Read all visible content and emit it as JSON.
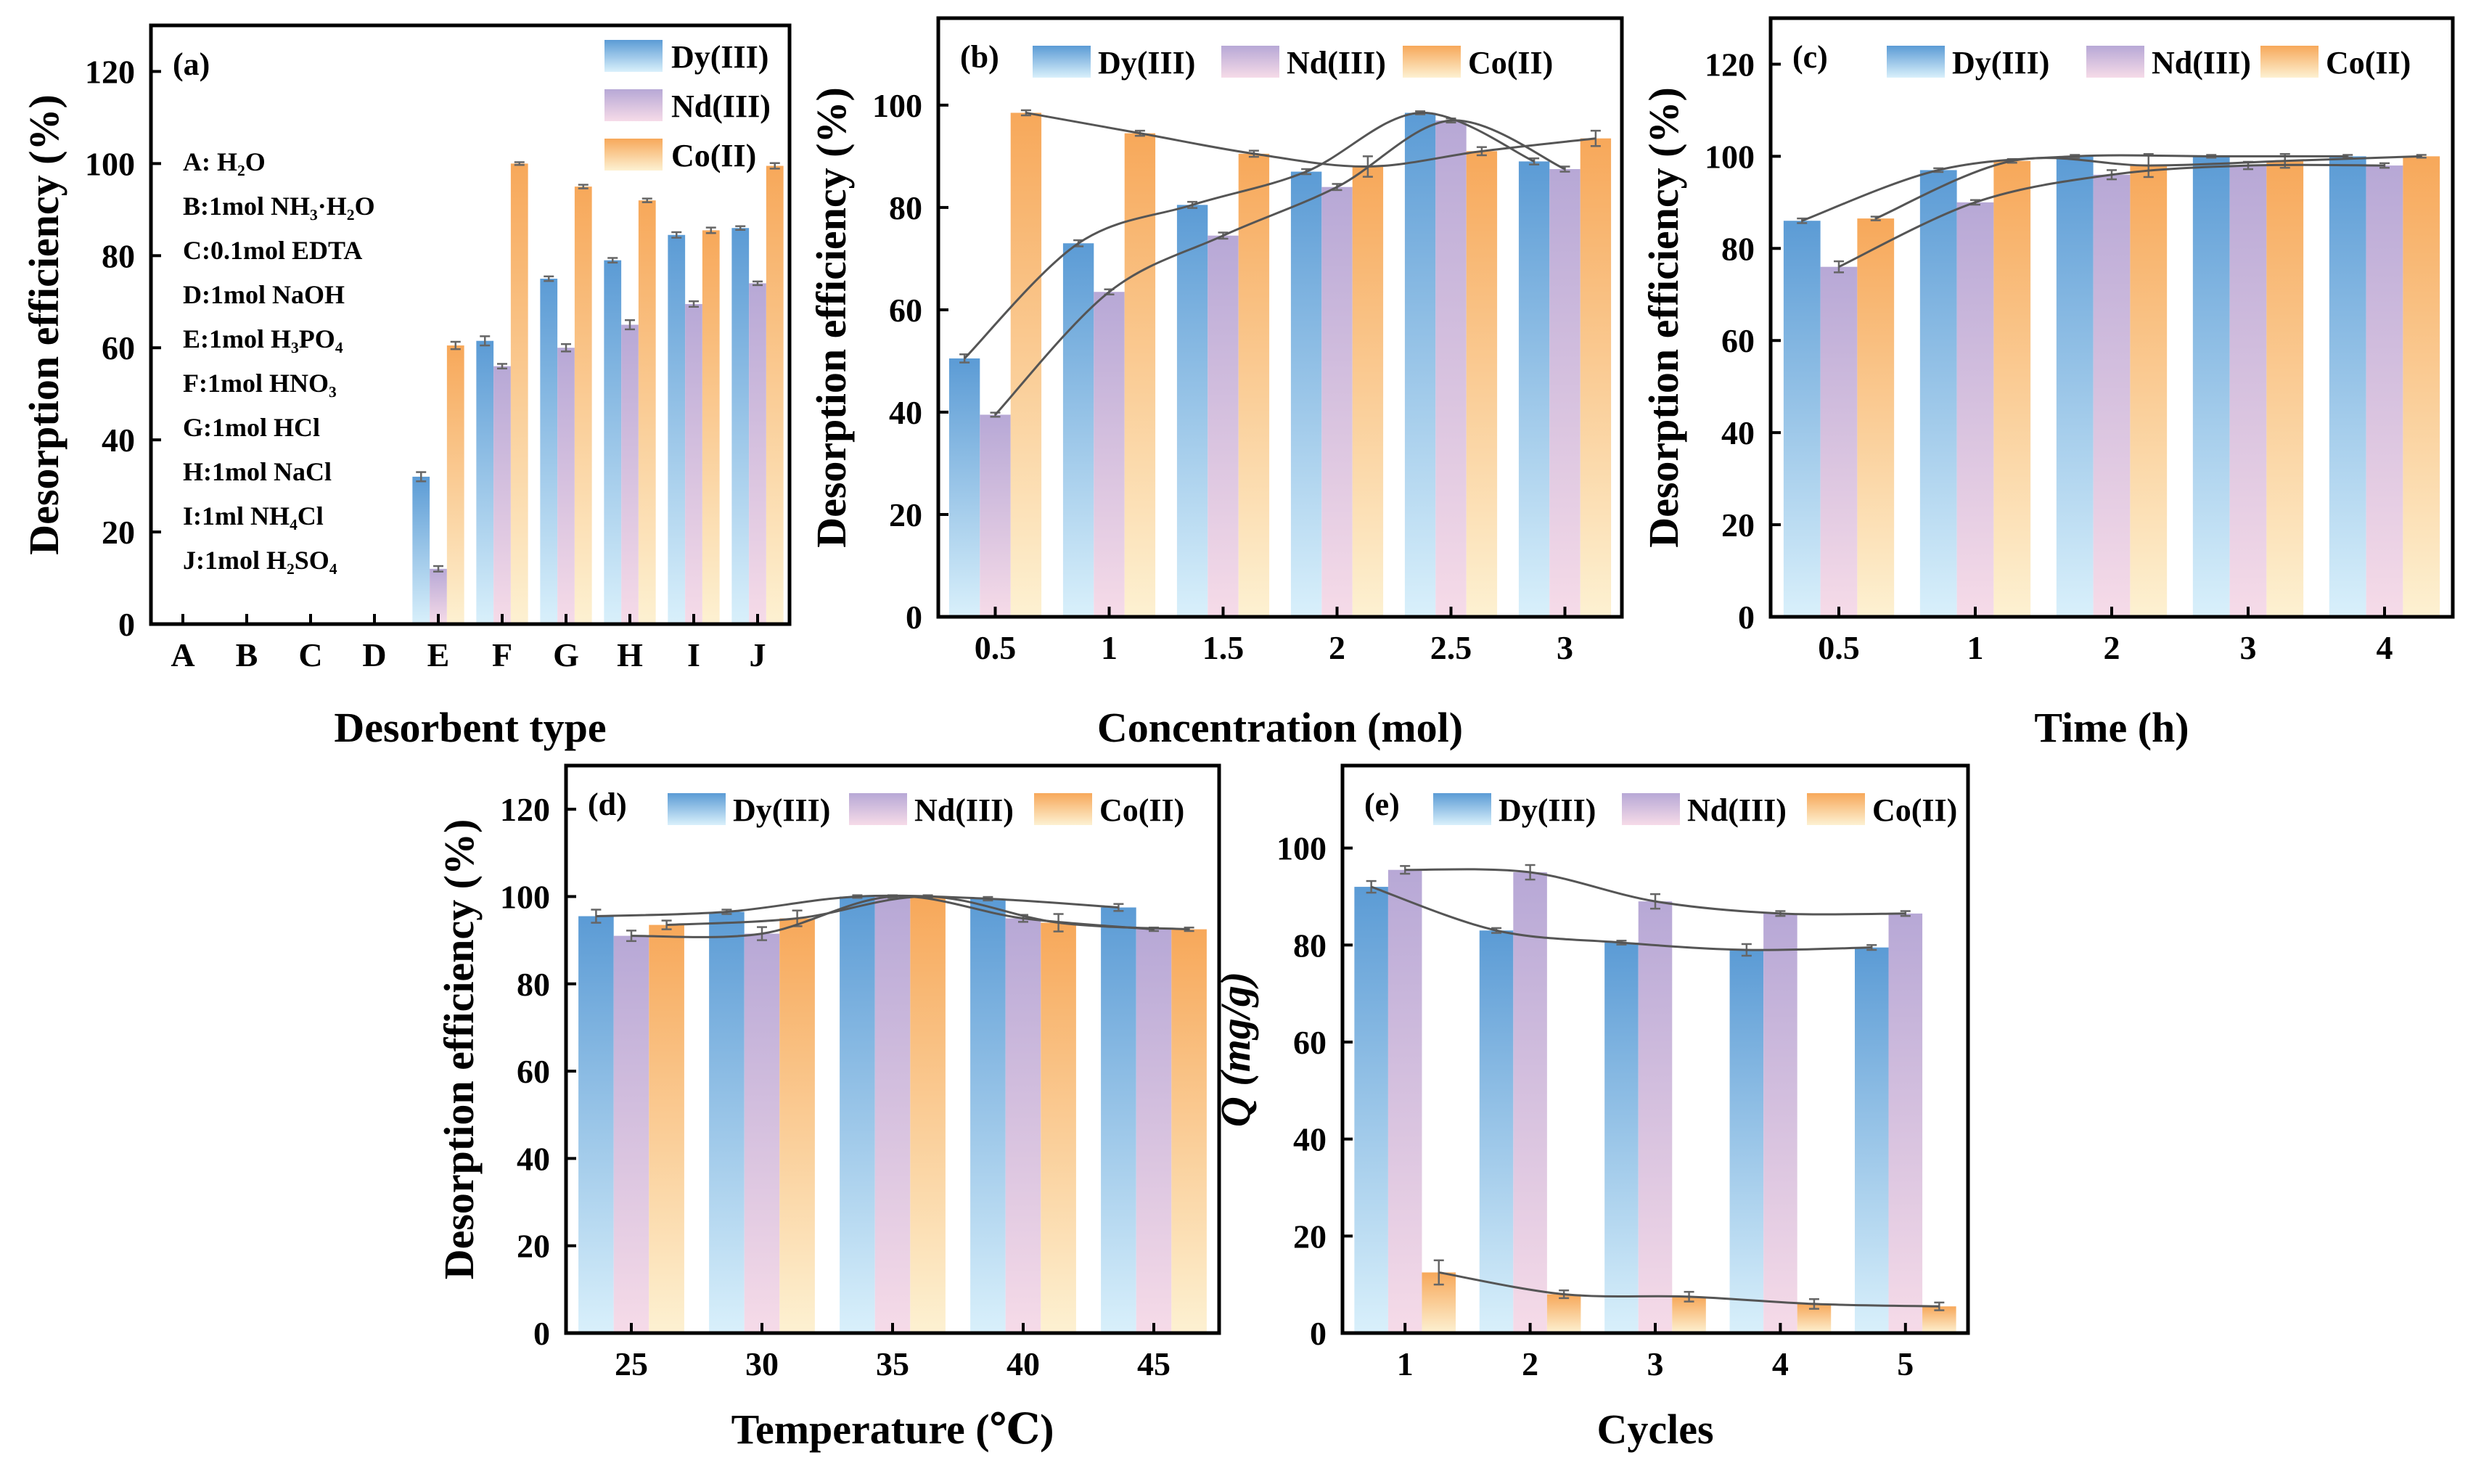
{
  "figure": {
    "series_names": [
      "Dy(III)",
      "Nd(III)",
      "Co(II)"
    ],
    "colors": {
      "dy_top": "#5b9bd5",
      "dy_bottom": "#d9f0fb",
      "nd_top": "#b7a8d6",
      "nd_bottom": "#f6dbe8",
      "co_top": "#f7a85a",
      "co_bottom": "#fdf1d2",
      "trend": "#555555",
      "errorbar": "#666666",
      "axis": "#000000"
    }
  },
  "chart_data": [
    {
      "id": "a",
      "panel_label": "(a)",
      "type": "bar",
      "xlabel": "Desorbent type",
      "ylabel": "Desorption efficiency (%)",
      "ylim": [
        0,
        130
      ],
      "yticks": [
        0,
        20,
        40,
        60,
        80,
        100,
        120
      ],
      "categories": [
        "A",
        "B",
        "C",
        "D",
        "E",
        "F",
        "G",
        "H",
        "I",
        "J"
      ],
      "series": [
        {
          "name": "Dy(III)",
          "values": [
            0,
            0,
            0,
            0,
            32,
            61.5,
            75,
            79,
            84.5,
            86
          ],
          "errors": [
            0,
            0,
            0,
            0,
            1,
            1,
            0.5,
            0.5,
            0.6,
            0.4
          ]
        },
        {
          "name": "Nd(III)",
          "values": [
            0,
            0,
            0,
            0,
            12,
            56,
            60,
            65,
            69.5,
            74
          ],
          "errors": [
            0,
            0,
            0,
            0,
            0.6,
            0.5,
            0.8,
            1,
            0.6,
            0.4
          ]
        },
        {
          "name": "Co(II)",
          "values": [
            0,
            0,
            0,
            0,
            60.5,
            100,
            95,
            92,
            85.5,
            99.5
          ],
          "errors": [
            0,
            0,
            0,
            0,
            0.8,
            0.3,
            0.4,
            0.4,
            0.6,
            0.6
          ]
        }
      ],
      "desorbent_key": [
        "A: H₂O",
        "B:1mol NH₃·H₂O",
        "C:0.1mol EDTA",
        "D:1mol NaOH",
        "E:1mol H₃PO₄",
        "F:1mol HNO₃",
        "G:1mol HCl",
        "H:1mol NaCl",
        "I:1ml NH₄Cl",
        "J:1mol H₂SO₄"
      ],
      "trend": false
    },
    {
      "id": "b",
      "panel_label": "(b)",
      "type": "bar",
      "xlabel": "Concentration (mol)",
      "ylabel": "Desorption efficiency (%)",
      "ylim": [
        0,
        117
      ],
      "yticks": [
        0,
        20,
        40,
        60,
        80,
        100
      ],
      "categories": [
        "0.5",
        "1",
        "1.5",
        "2",
        "2.5",
        "3"
      ],
      "series": [
        {
          "name": "Dy(III)",
          "values": [
            50.5,
            73,
            80.5,
            87,
            98.5,
            89
          ],
          "errors": [
            0.8,
            0.6,
            0.6,
            0.5,
            0.3,
            0.6
          ]
        },
        {
          "name": "Nd(III)",
          "values": [
            39.5,
            63.5,
            74.5,
            84,
            97,
            87.5
          ],
          "errors": [
            0.4,
            0.5,
            0.6,
            0.6,
            0.4,
            0.5
          ]
        },
        {
          "name": "Co(II)",
          "values": [
            98.5,
            94.5,
            90.5,
            88,
            91,
            93.5
          ],
          "errors": [
            0.5,
            0.5,
            0.6,
            2,
            0.8,
            1.5
          ]
        }
      ],
      "trend": true
    },
    {
      "id": "c",
      "panel_label": "(c)",
      "type": "bar",
      "xlabel": "Time (h)",
      "ylabel": "Desorption efficiency (%)",
      "ylim": [
        0,
        130
      ],
      "yticks": [
        0,
        20,
        40,
        60,
        80,
        100,
        120
      ],
      "categories": [
        "0.5",
        "1",
        "2",
        "3",
        "4"
      ],
      "series": [
        {
          "name": "Dy(III)",
          "values": [
            86,
            97,
            100,
            100,
            100
          ],
          "errors": [
            0.5,
            0.4,
            0.3,
            0.3,
            0.3
          ]
        },
        {
          "name": "Nd(III)",
          "values": [
            76,
            90,
            96,
            98,
            98
          ],
          "errors": [
            1.2,
            0.5,
            1,
            0.8,
            0.5
          ]
        },
        {
          "name": "Co(II)",
          "values": [
            86.5,
            99,
            98,
            99,
            100
          ],
          "errors": [
            0.4,
            0.4,
            2.5,
            1.5,
            0.3
          ]
        }
      ],
      "trend": true
    },
    {
      "id": "d",
      "panel_label": "(d)",
      "type": "bar",
      "xlabel": "Temperature (℃)",
      "ylabel": "Desorption efficiency (%)",
      "ylim": [
        0,
        130
      ],
      "yticks": [
        0,
        20,
        40,
        60,
        80,
        100,
        120
      ],
      "categories": [
        "25",
        "30",
        "35",
        "40",
        "45"
      ],
      "series": [
        {
          "name": "Dy(III)",
          "values": [
            95.5,
            96.5,
            100,
            99.5,
            97.5
          ],
          "errors": [
            1.5,
            0.5,
            0.3,
            0.4,
            0.8
          ]
        },
        {
          "name": "Nd(III)",
          "values": [
            91,
            91.5,
            100,
            95,
            92.5
          ],
          "errors": [
            1.2,
            1.5,
            0.3,
            0.8,
            0.4
          ]
        },
        {
          "name": "Co(II)",
          "values": [
            93.5,
            95,
            100,
            94,
            92.5
          ],
          "errors": [
            1,
            1.8,
            0.3,
            2,
            0.4
          ]
        }
      ],
      "trend": true
    },
    {
      "id": "e",
      "panel_label": "(e)",
      "type": "bar",
      "xlabel": "Cycles",
      "ylabel": "Q (mg/g)",
      "ylim": [
        0,
        117
      ],
      "yticks": [
        0,
        20,
        40,
        60,
        80,
        100
      ],
      "categories": [
        "1",
        "2",
        "3",
        "4",
        "5"
      ],
      "series": [
        {
          "name": "Dy(III)",
          "values": [
            92,
            83,
            80.5,
            79,
            79.5
          ],
          "errors": [
            1.2,
            0.5,
            0.4,
            1.2,
            0.5
          ]
        },
        {
          "name": "Nd(III)",
          "values": [
            95.5,
            95,
            89,
            86.5,
            86.5
          ],
          "errors": [
            0.8,
            1.5,
            1.5,
            0.5,
            0.5
          ]
        },
        {
          "name": "Co(II)",
          "values": [
            12.5,
            8,
            7.5,
            6,
            5.5
          ],
          "errors": [
            2.5,
            0.8,
            1,
            1,
            0.8
          ]
        }
      ],
      "trend": true
    }
  ]
}
